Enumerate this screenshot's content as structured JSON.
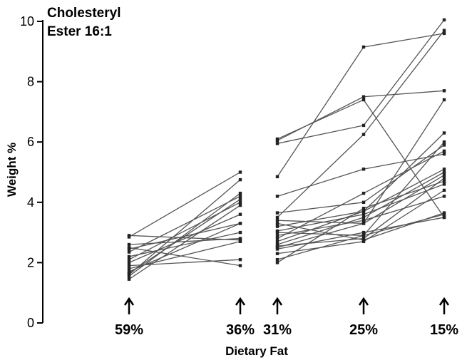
{
  "chart_data": {
    "type": "line",
    "title_lines": [
      "Cholesteryl",
      "Ester 16:1"
    ],
    "xlabel": "Dietary Fat",
    "ylabel": "Weight %",
    "ylim": [
      0,
      10
    ],
    "yticks": [
      0,
      2,
      4,
      6,
      8,
      10
    ],
    "categories": [
      "59%",
      "36%",
      "31%",
      "25%",
      "15%"
    ],
    "grid": false,
    "legend": "none",
    "line_color": "#555555",
    "marker_color": "#222222",
    "series_group_a": [
      [
        1.45,
        3.9
      ],
      [
        1.55,
        4.3
      ],
      [
        1.6,
        4.75
      ],
      [
        1.65,
        4.1
      ],
      [
        1.7,
        3.3
      ],
      [
        1.8,
        2.7
      ],
      [
        1.9,
        2.1
      ],
      [
        2.0,
        3.6
      ],
      [
        2.1,
        4.0
      ],
      [
        2.2,
        3.0
      ],
      [
        2.35,
        4.2
      ],
      [
        2.45,
        3.3
      ],
      [
        2.5,
        1.9
      ],
      [
        2.6,
        2.8
      ],
      [
        2.85,
        5.0
      ],
      [
        2.9,
        2.75
      ]
    ],
    "series_group_b": [
      [
        2.0,
        3.8,
        4.7
      ],
      [
        2.1,
        2.9,
        3.6
      ],
      [
        2.3,
        2.7,
        4.4
      ],
      [
        2.45,
        3.0,
        3.5
      ],
      [
        2.5,
        3.3,
        7.4
      ],
      [
        2.55,
        2.8,
        4.8
      ],
      [
        2.6,
        3.5,
        5.0
      ],
      [
        2.7,
        3.7,
        5.1
      ],
      [
        2.8,
        4.3,
        5.7
      ],
      [
        2.9,
        3.4,
        4.2
      ],
      [
        3.0,
        2.9,
        6.0
      ],
      [
        3.05,
        3.6,
        4.6
      ],
      [
        3.2,
        3.7,
        6.3
      ],
      [
        3.3,
        2.75,
        3.65
      ],
      [
        3.4,
        3.3,
        4.9
      ],
      [
        3.5,
        6.25,
        9.7
      ],
      [
        3.65,
        4.0,
        5.9
      ],
      [
        4.2,
        5.1,
        5.6
      ],
      [
        4.85,
        9.15,
        9.6
      ],
      [
        5.95,
        6.55,
        10.05
      ],
      [
        6.05,
        7.5,
        7.7
      ],
      [
        6.1,
        7.4,
        3.5
      ]
    ]
  }
}
